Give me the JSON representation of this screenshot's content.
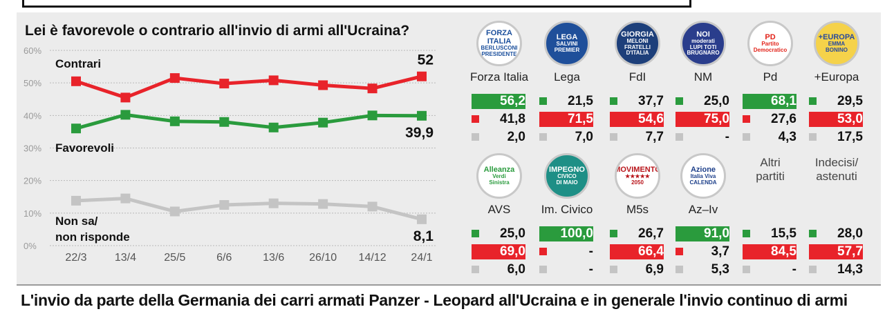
{
  "title": "Lei è favorevole o contrario all'invio di armi all'Ucraina?",
  "bottom_text": "L'invio da parte della Germania dei carri armati Panzer - Leopard all'Ucraina e in generale l'invio continuo di armi",
  "colors": {
    "contrari": "#e8232a",
    "favorevoli": "#2a9b3d",
    "nonsa": "#c4c4c4"
  },
  "chart_data": {
    "type": "line",
    "title": "Lei è favorevole o contrario all'invio di armi all'Ucraina?",
    "categories": [
      "22/3",
      "13/4",
      "25/5",
      "6/6",
      "13/6",
      "26/10",
      "14/12",
      "24/1"
    ],
    "y_ticks": [
      "60%",
      "50%",
      "40%",
      "30%",
      "20%",
      "10%",
      "0%"
    ],
    "ylim": [
      0,
      60
    ],
    "series": [
      {
        "name": "Contrari",
        "values": [
          50.5,
          45.5,
          51.5,
          49.8,
          50.8,
          49.3,
          48.3,
          52
        ],
        "end_label": "52"
      },
      {
        "name": "Favorevoli",
        "values": [
          36,
          40.2,
          38.2,
          38,
          36.3,
          37.8,
          40,
          39.9
        ],
        "end_label": "39,9"
      },
      {
        "name_lines": [
          "Non sa/",
          "non risponde"
        ],
        "values": [
          13.8,
          14.5,
          10.5,
          12.5,
          13,
          12.8,
          12,
          8.1
        ],
        "end_label": "8,1"
      }
    ],
    "grid": true
  },
  "parties": [
    {
      "name": "Forza Italia",
      "logo": [
        "FORZA ITALIA",
        "BERLUSCONI",
        "PRESIDENTE"
      ],
      "logo_bg": "#ffffff",
      "logo_fg": "#1b4f9c",
      "fav": "56,2",
      "con": "41,8",
      "ns": "2,0",
      "hl": "fav"
    },
    {
      "name": "Lega",
      "logo": [
        "LEGA",
        "SALVINI",
        "PREMIER"
      ],
      "logo_bg": "#1f4f9a",
      "logo_fg": "#ffffff",
      "fav": "21,5",
      "con": "71,5",
      "ns": "7,0",
      "hl": "con"
    },
    {
      "name": "FdI",
      "logo": [
        "GIORGIA",
        "MELONI",
        "FRATELLI D'ITALIA"
      ],
      "logo_bg": "#1d3f7a",
      "logo_fg": "#ffffff",
      "fav": "37,7",
      "con": "54,6",
      "ns": "7,7",
      "hl": "con"
    },
    {
      "name": "NM",
      "logo": [
        "NOI",
        "moderati",
        "LUPI TOTI BRUGNARO"
      ],
      "logo_bg": "#2a3d8c",
      "logo_fg": "#ffffff",
      "fav": "25,0",
      "con": "75,0",
      "ns": "-",
      "hl": "con"
    },
    {
      "name": "Pd",
      "logo": [
        "PD",
        "Partito Democratico"
      ],
      "logo_bg": "#ffffff",
      "logo_fg": "#e2231a",
      "fav": "68,1",
      "con": "27,6",
      "ns": "4,3",
      "hl": "fav"
    },
    {
      "name": "+Europa",
      "logo": [
        "+EUROPA",
        "EMMA",
        "BONINO"
      ],
      "logo_bg": "#f5d24a",
      "logo_fg": "#2a4b9b",
      "fav": "29,5",
      "con": "53,0",
      "ns": "17,5",
      "hl": "con"
    },
    {
      "name": "AVS",
      "logo": [
        "Alleanza",
        "Verdi",
        "Sinistra"
      ],
      "logo_bg": "#ffffff",
      "logo_fg": "#2a9b3d",
      "fav": "25,0",
      "con": "69,0",
      "ns": "6,0",
      "hl": "con"
    },
    {
      "name": "Im. Civico",
      "logo": [
        "IMPEGNO",
        "CIVICO",
        "DI MAIO"
      ],
      "logo_bg": "#1e8f86",
      "logo_fg": "#ffffff",
      "fav": "100,0",
      "con": "-",
      "ns": "-",
      "hl": "fav"
    },
    {
      "name": "M5s",
      "logo": [
        "MOVIMENTO",
        "★★★★★",
        "2050"
      ],
      "logo_bg": "#ffffff",
      "logo_fg": "#b8141a",
      "fav": "26,7",
      "con": "66,4",
      "ns": "6,9",
      "hl": "con"
    },
    {
      "name": "Az–Iv",
      "logo": [
        "Azione",
        "Italia Viva",
        "CALENDA"
      ],
      "logo_bg": "#ffffff",
      "logo_fg": "#1d3f8a",
      "fav": "91,0",
      "con": "3,7",
      "ns": "5,3",
      "hl": "fav"
    },
    {
      "name_lines": [
        "Altri",
        "partiti"
      ],
      "fav": "15,5",
      "con": "84,5",
      "ns": "-",
      "hl": "con"
    },
    {
      "name_lines": [
        "Indecisi/",
        "astenuti"
      ],
      "fav": "28,0",
      "con": "57,7",
      "ns": "14,3",
      "hl": "con"
    }
  ]
}
